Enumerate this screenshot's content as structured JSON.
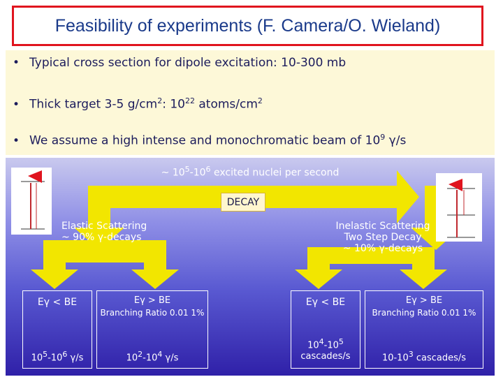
{
  "title": "Feasibility of experiments (F. Camera/O. Wieland)",
  "bullets": [
    {
      "text": "Typical cross section for dipole excitation: 10-300 mb"
    },
    {
      "pre": "Thick target 3-5 g/cm",
      "sup1": "2",
      "mid": ": 10",
      "sup2": "22",
      "mid2": " atoms/cm",
      "sup3": "2"
    },
    {
      "pre": "We assume a high intense and monochromatic beam of 10",
      "sup1": "9",
      "post": " γ/s"
    }
  ],
  "diagram": {
    "top_pre": "~ 10",
    "top_sup1": "5",
    "top_mid": "-10",
    "top_sup2": "6",
    "top_post": " excited nuclei per second",
    "decay": "DECAY",
    "elastic_line1": "Elastic Scattering",
    "elastic_line2": "~ 90% γ-decays",
    "inelastic_line1": "Inelastic Scattering",
    "inelastic_line2": "Two Step Decay",
    "inelastic_line3": "~ 10% γ-decays",
    "box1_label": "Eγ < BE",
    "box1_rate_pre": "10",
    "box1_rate_sup1": "5",
    "box1_rate_mid": "-10",
    "box1_rate_sup2": "6",
    "box1_rate_post": " γ/s",
    "box2_label": "Eγ > BE",
    "box2_sub": "Branching Ratio 0.01 1%",
    "box2_rate_pre": "10",
    "box2_rate_sup1": "2",
    "box2_rate_mid": "-10",
    "box2_rate_sup2": "4",
    "box2_rate_post": " γ/s",
    "box3_label": "Eγ < BE",
    "box3_rate_pre": "10",
    "box3_rate_sup1": "4",
    "box3_rate_mid": "-10",
    "box3_rate_sup2": "5",
    "box3_rate_line2": "cascades/s",
    "box4_label": "Eγ > BE",
    "box4_sub": "Branching Ratio 0.01 1%",
    "box4_rate_pre": "10-10",
    "box4_rate_sup": "3",
    "box4_rate_post": " cascades/s"
  },
  "colors": {
    "title_border": "#e0141e",
    "title_text": "#1a3a8a",
    "arrow": "#f2e600",
    "bullet_bg": "#fdf8d8"
  }
}
